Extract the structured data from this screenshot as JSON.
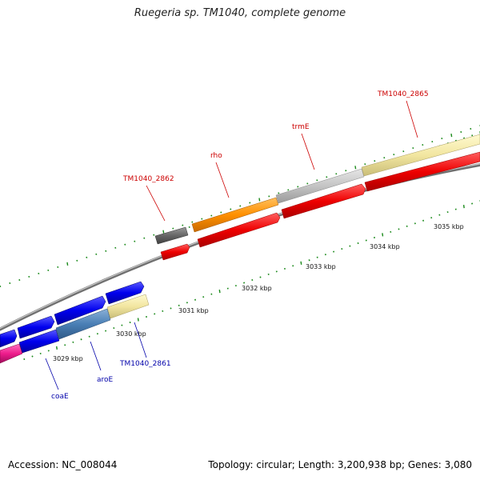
{
  "title": "Ruegeria sp. TM1040, complete genome",
  "footer": {
    "accession": "Accession: NC_008044",
    "summary": "Topology: circular; Length: 3,200,938 bp; Genes: 3,080"
  },
  "ruler": {
    "labels": [
      "3029 kbp",
      "3030 kbp",
      "3031 kbp",
      "3032 kbp",
      "3033 kbp",
      "3034 kbp",
      "3035 kbp"
    ]
  },
  "colors": {
    "red_label": "#cc0000",
    "blue_label": "#0000aa",
    "tick_green": "#1a8a1a",
    "backbone": "#888888"
  },
  "upper_genes": [
    {
      "name": "TM1040_2862"
    },
    {
      "name": "rho"
    },
    {
      "name": "trmE"
    },
    {
      "name": "TM1040_2865"
    }
  ],
  "lower_genes": [
    {
      "name": "coaE"
    },
    {
      "name": "aroE"
    },
    {
      "name": "TM1040_2861"
    }
  ]
}
